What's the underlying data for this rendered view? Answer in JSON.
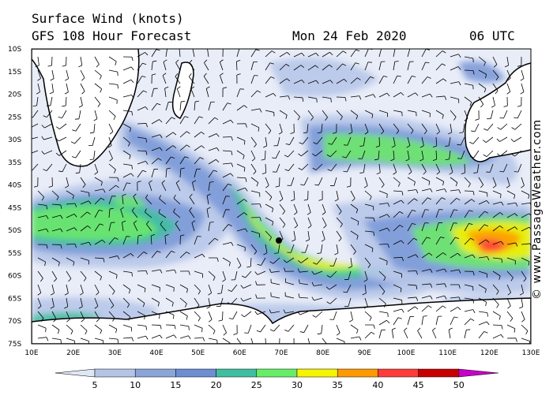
{
  "header": {
    "title": "Surface Wind (knots)",
    "subtitle": "GFS 108 Hour Forecast",
    "date": "Mon 24 Feb 2020",
    "time": "06 UTC"
  },
  "credit": "© www.PassageWeather.com",
  "map": {
    "lat_labels": [
      "10S",
      "15S",
      "20S",
      "25S",
      "30S",
      "35S",
      "40S",
      "45S",
      "50S",
      "55S",
      "60S",
      "65S",
      "70S",
      "75S"
    ],
    "lon_labels": [
      "10E",
      "20E",
      "30E",
      "40E",
      "50E",
      "60E",
      "70E",
      "80E",
      "90E",
      "100E",
      "110E",
      "120E",
      "130E"
    ],
    "lon_range": [
      10,
      130
    ],
    "lat_range": [
      -10,
      -75
    ]
  },
  "colorbar": {
    "ticks": [
      "5",
      "10",
      "15",
      "20",
      "25",
      "30",
      "35",
      "40",
      "45",
      "50"
    ],
    "colors": [
      "#dfe6f5",
      "#b3c4e6",
      "#8ba5da",
      "#6d8ed2",
      "#3fbf9f",
      "#66ee66",
      "#f5f500",
      "#ff9900",
      "#ff3c3c",
      "#c80000",
      "#c800c8"
    ]
  },
  "colors": {
    "low": "#e9edf8",
    "light": "#b7c7e9",
    "medium": "#7d9ad8",
    "teal": "#3dbfa0",
    "green": "#6be86b",
    "yellow": "#f3f000",
    "orange": "#ff9a00",
    "red": "#ff3c3c"
  }
}
